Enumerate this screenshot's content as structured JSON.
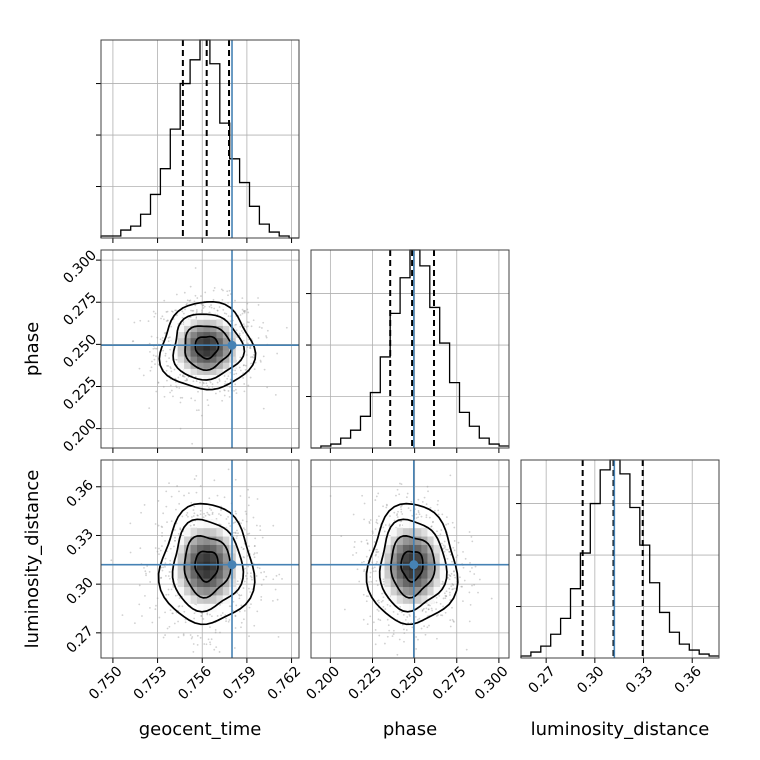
{
  "chart_data": {
    "type": "corner",
    "parameters": [
      {
        "name": "geocent_time",
        "label": "geocent_time",
        "range": [
          0.7492,
          0.7625
        ],
        "ticks": [
          0.75,
          0.753,
          0.756,
          0.759,
          0.762
        ],
        "tick_labels": [
          "0.750",
          "0.753",
          "0.756",
          "0.759",
          "0.762"
        ],
        "quantiles": [
          0.7547,
          0.7563,
          0.7578
        ],
        "truth": 0.758,
        "hist_bin_edges_start": 0.7492,
        "hist_bin_width": 0.000665,
        "hist_counts": [
          0.01,
          0.01,
          0.04,
          0.06,
          0.12,
          0.22,
          0.35,
          0.55,
          0.78,
          0.9,
          1.0,
          0.88,
          0.58,
          0.4,
          0.28,
          0.16,
          0.07,
          0.03,
          0.01,
          0.0
        ]
      },
      {
        "name": "phase",
        "label": "phase",
        "range": [
          0.1885,
          0.306
        ],
        "ticks": [
          0.2,
          0.225,
          0.25,
          0.275,
          0.3
        ],
        "tick_labels": [
          "0.200",
          "0.225",
          "0.250",
          "0.275",
          "0.300"
        ],
        "quantiles": [
          0.2355,
          0.2485,
          0.2615
        ],
        "truth": 0.2495,
        "hist_bin_edges_start": 0.1885,
        "hist_bin_width": 0.005875,
        "hist_counts": [
          0.0,
          0.01,
          0.02,
          0.05,
          0.09,
          0.16,
          0.28,
          0.46,
          0.68,
          0.86,
          1.0,
          0.92,
          0.71,
          0.53,
          0.33,
          0.18,
          0.11,
          0.05,
          0.02,
          0.01
        ]
      },
      {
        "name": "luminosity_distance",
        "label": "luminosity_distance",
        "range": [
          0.2545,
          0.3765
        ],
        "ticks": [
          0.27,
          0.3,
          0.33,
          0.36
        ],
        "tick_labels": [
          "0.27",
          "0.30",
          "0.33",
          "0.36"
        ],
        "quantiles": [
          0.2925,
          0.3115,
          0.3295
        ],
        "truth": 0.312,
        "hist_bin_edges_start": 0.2545,
        "hist_bin_width": 0.0061,
        "hist_counts": [
          0.01,
          0.03,
          0.06,
          0.12,
          0.2,
          0.35,
          0.53,
          0.78,
          0.95,
          1.0,
          0.93,
          0.76,
          0.57,
          0.38,
          0.23,
          0.13,
          0.07,
          0.04,
          0.02,
          0.01
        ]
      }
    ],
    "hist_axis_ticks": [
      0.26,
      0.52,
      0.78
    ],
    "posterior_means": [
      0.7563,
      0.2485,
      0.3115
    ],
    "grid": true
  },
  "colors": {
    "truth": "#4682b4",
    "contour": "#000000",
    "samples": "#9a9a9a",
    "grid": "#b0b0b0"
  }
}
